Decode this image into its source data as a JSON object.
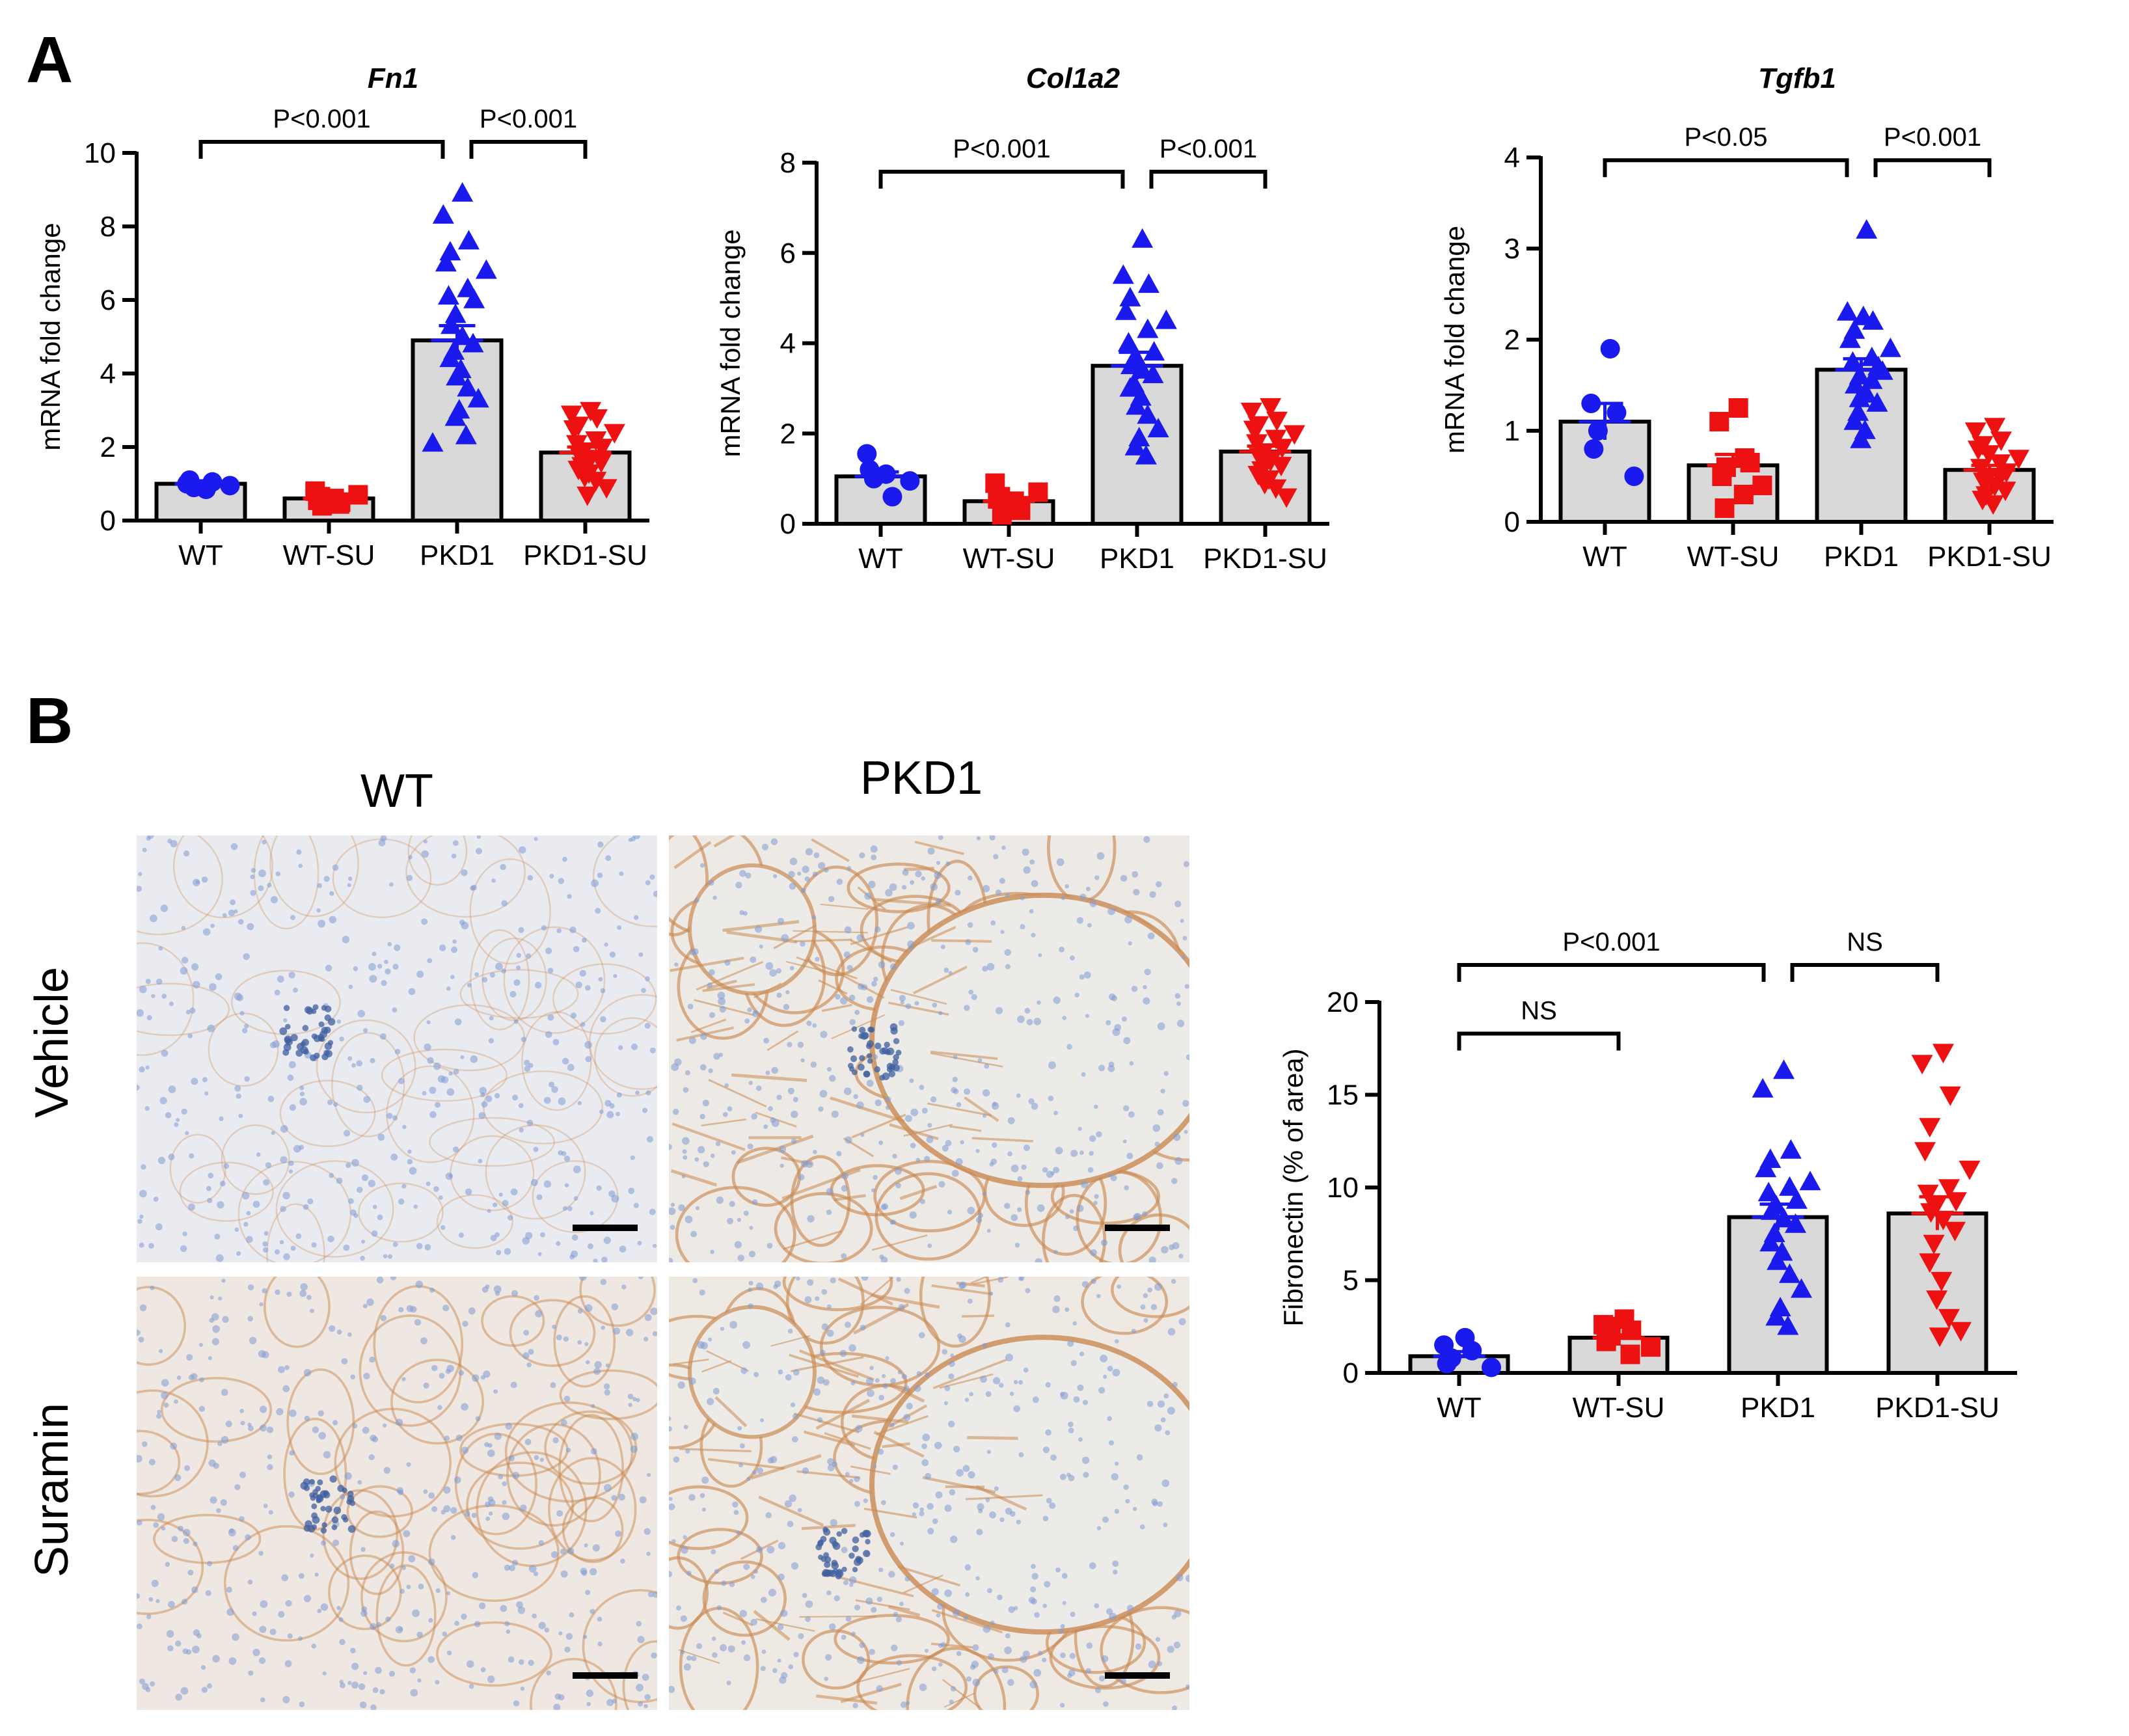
{
  "figure": {
    "panel_a_letter": "A",
    "panel_b_letter": "B",
    "column_labels": [
      "WT",
      "PKD1"
    ],
    "row_labels": [
      "Vehicle",
      "Suramin"
    ]
  },
  "colors": {
    "WT": "#1a1aee",
    "WT-SU": "#ee1111",
    "PKD1": "#1a1aee",
    "PKD1-SU": "#ee1111",
    "bar_fill": "#d9d9d9",
    "micro_bg_wt": "#eaebf0",
    "micro_bg_pkd": "#ede9e4",
    "stain_brown": "#c98a52",
    "nuclei_blue": "#7f9bd2"
  },
  "chart_data": [
    {
      "type": "bar",
      "title": "Fn1",
      "ylabel": "mRNA fold change",
      "xlabel": "",
      "categories": [
        "WT",
        "WT-SU",
        "PKD1",
        "PKD1-SU"
      ],
      "values": [
        1.0,
        0.6,
        4.9,
        1.85
      ],
      "sem": [
        0.08,
        0.07,
        0.4,
        0.15
      ],
      "ylim": [
        0,
        10
      ],
      "yticks": [
        0,
        2,
        4,
        6,
        8,
        10
      ],
      "markers": [
        "circle",
        "square",
        "triangle",
        "triangle-down"
      ],
      "points": [
        [
          0.85,
          1.0,
          1.05,
          0.9,
          1.1,
          0.95
        ],
        [
          0.6,
          0.8,
          0.5,
          0.4,
          0.55,
          0.7,
          0.45,
          0.65
        ],
        [
          8.9,
          8.3,
          7.6,
          7.3,
          7.0,
          6.8,
          6.3,
          6.1,
          6.0,
          5.6,
          5.3,
          5.0,
          4.8,
          4.6,
          4.4,
          4.1,
          3.9,
          3.6,
          3.3,
          3.0,
          2.8,
          2.3,
          2.1
        ],
        [
          3.0,
          2.9,
          2.8,
          2.6,
          2.5,
          2.4,
          2.2,
          2.1,
          2.0,
          1.9,
          1.8,
          1.7,
          1.6,
          1.5,
          1.4,
          1.3,
          1.2,
          1.1,
          0.9,
          0.7
        ]
      ],
      "comparisons": [
        {
          "from": 0,
          "to": 2,
          "label": "P<0.001",
          "y": 10.3
        },
        {
          "from": 2,
          "to": 3,
          "label": "P<0.001",
          "y": 10.3
        }
      ]
    },
    {
      "type": "bar",
      "title": "Col1a2",
      "ylabel": "mRNA fold change",
      "xlabel": "",
      "categories": [
        "WT",
        "WT-SU",
        "PKD1",
        "PKD1-SU"
      ],
      "values": [
        1.05,
        0.5,
        3.5,
        1.6
      ],
      "sem": [
        0.1,
        0.06,
        0.3,
        0.12
      ],
      "ylim": [
        0,
        8
      ],
      "yticks": [
        0,
        2,
        4,
        6,
        8
      ],
      "markers": [
        "circle",
        "square",
        "triangle",
        "triangle-down"
      ],
      "points": [
        [
          1.1,
          1.55,
          0.6,
          1.0,
          1.2,
          0.95
        ],
        [
          0.5,
          0.9,
          0.3,
          0.2,
          0.55,
          0.7,
          0.4,
          0.6
        ],
        [
          6.3,
          5.5,
          5.3,
          5.0,
          4.7,
          4.5,
          4.3,
          4.0,
          3.8,
          3.7,
          3.5,
          3.4,
          3.3,
          3.1,
          3.0,
          2.8,
          2.6,
          2.4,
          2.1,
          1.9,
          1.7,
          1.5
        ],
        [
          2.6,
          2.5,
          2.3,
          2.2,
          2.1,
          2.0,
          1.9,
          1.8,
          1.7,
          1.6,
          1.5,
          1.4,
          1.3,
          1.2,
          1.1,
          1.0,
          0.9,
          0.8,
          0.6
        ]
      ],
      "comparisons": [
        {
          "from": 0,
          "to": 2,
          "label": "P<0.001",
          "y": 7.8
        },
        {
          "from": 2,
          "to": 3,
          "label": "P<0.001",
          "y": 7.8
        }
      ]
    },
    {
      "type": "bar",
      "title": "Tgfb1",
      "ylabel": "mRNA fold change",
      "xlabel": "",
      "categories": [
        "WT",
        "WT-SU",
        "PKD1",
        "PKD1-SU"
      ],
      "values": [
        1.1,
        0.62,
        1.67,
        0.57
      ],
      "sem": [
        0.2,
        0.12,
        0.12,
        0.05
      ],
      "ylim": [
        0,
        4
      ],
      "yticks": [
        0,
        1,
        2,
        3,
        4
      ],
      "markers": [
        "circle",
        "square",
        "triangle",
        "triangle-down"
      ],
      "points": [
        [
          1.9,
          1.3,
          1.2,
          1.0,
          0.8,
          0.5
        ],
        [
          1.25,
          1.1,
          0.7,
          0.6,
          0.5,
          0.4,
          0.3,
          0.15,
          0.65
        ],
        [
          3.2,
          2.3,
          2.2,
          2.1,
          2.0,
          1.9,
          1.8,
          1.75,
          1.7,
          1.6,
          1.5,
          1.4,
          1.3,
          1.2,
          1.1,
          1.0,
          0.9,
          1.55,
          1.65,
          2.25,
          1.35
        ],
        [
          1.05,
          1.0,
          0.9,
          0.85,
          0.8,
          0.7,
          0.65,
          0.6,
          0.55,
          0.5,
          0.45,
          0.4,
          0.35,
          0.3,
          0.25,
          0.2,
          0.75,
          0.5
        ]
      ],
      "comparisons": [
        {
          "from": 0,
          "to": 2,
          "label": "P<0.05",
          "y": 3.97
        },
        {
          "from": 2,
          "to": 3,
          "label": "P<0.001",
          "y": 3.97
        }
      ]
    },
    {
      "type": "bar",
      "title": "",
      "ylabel": "Fibronectin (% of area)",
      "xlabel": "",
      "categories": [
        "WT",
        "WT-SU",
        "PKD1",
        "PKD1-SU"
      ],
      "values": [
        0.9,
        1.9,
        8.4,
        8.6
      ],
      "sem": [
        0.25,
        0.15,
        0.7,
        0.9
      ],
      "ylim": [
        0,
        20
      ],
      "yticks": [
        0,
        5,
        10,
        15,
        20
      ],
      "markers": [
        "circle",
        "square",
        "triangle",
        "triangle-down"
      ],
      "points": [
        [
          1.9,
          1.5,
          1.2,
          0.8,
          0.5,
          0.3
        ],
        [
          2.9,
          2.6,
          2.3,
          2.0,
          1.7,
          1.4,
          1.0,
          2.5
        ],
        [
          16.3,
          15.3,
          12.0,
          11.5,
          11.0,
          10.3,
          10.0,
          9.7,
          9.3,
          9.0,
          8.7,
          8.3,
          8.0,
          7.5,
          7.0,
          6.5,
          6.0,
          5.3,
          4.5,
          3.5,
          3.0,
          2.5
        ],
        [
          17.3,
          16.7,
          15.0,
          13.3,
          12.0,
          11.0,
          10.0,
          9.7,
          9.3,
          9.0,
          8.7,
          8.3,
          7.7,
          7.0,
          6.0,
          5.0,
          4.0,
          3.0,
          2.3,
          2.0
        ]
      ],
      "comparisons": [
        {
          "from": 0,
          "to": 1,
          "label": "NS",
          "y": 18.3
        },
        {
          "from": 0,
          "to": 2,
          "label": "P<0.001",
          "y": 22.0
        },
        {
          "from": 2,
          "to": 3,
          "label": "NS",
          "y": 22.0
        }
      ]
    }
  ]
}
